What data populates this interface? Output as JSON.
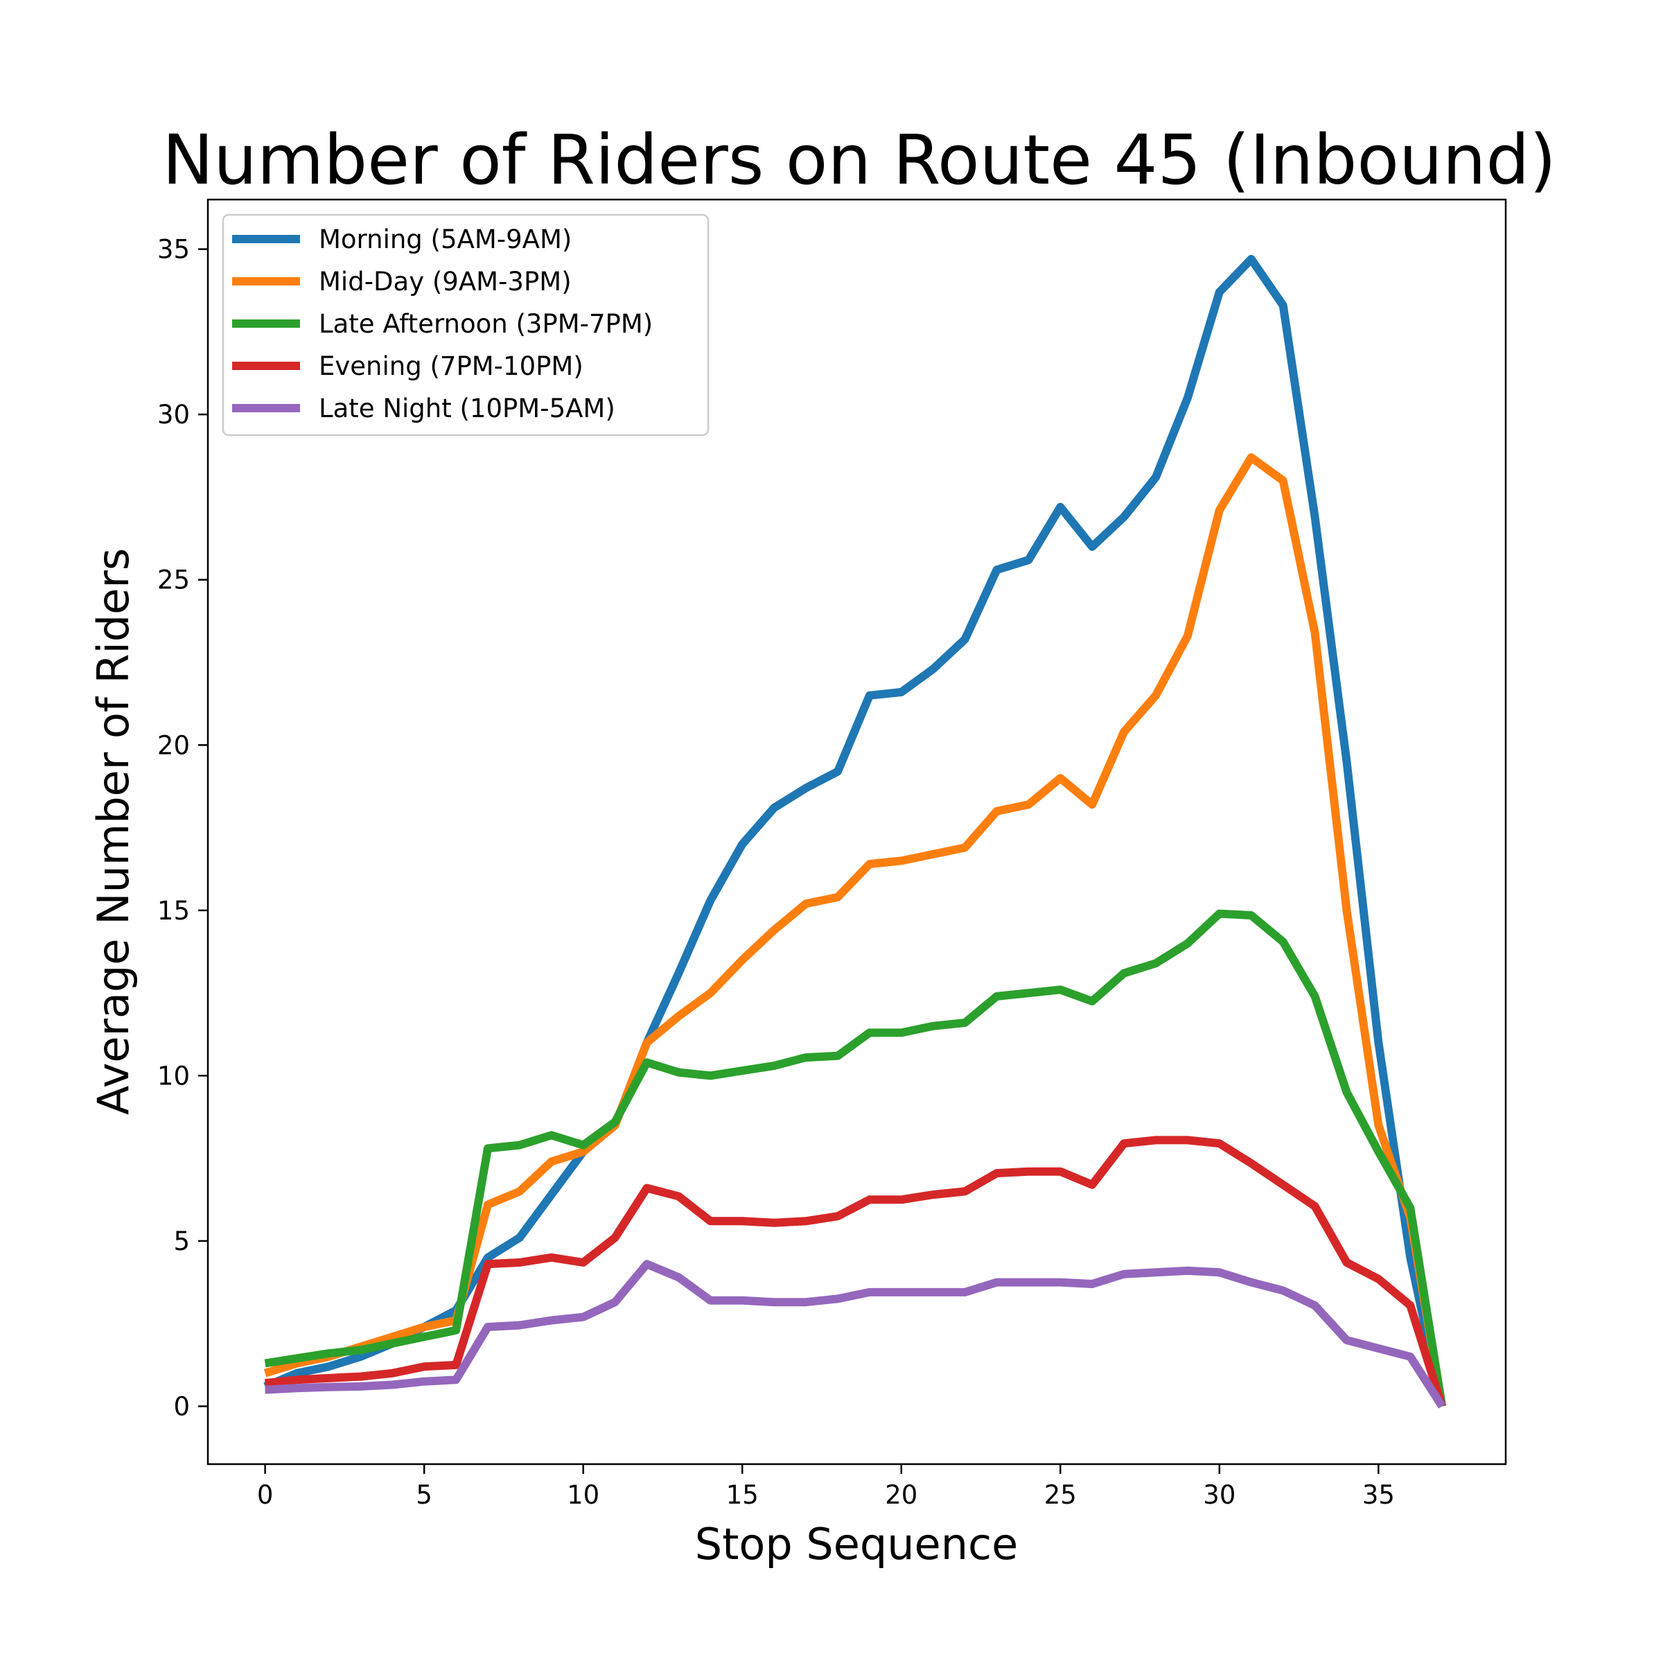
{
  "chart_data": {
    "type": "line",
    "title": "Number of Riders on Route 45 (Inbound)",
    "xlabel": "Stop Sequence",
    "ylabel": "Average Number of Riders",
    "xlim": [
      -1.8,
      39.0
    ],
    "ylim": [
      -1.75,
      36.5
    ],
    "xticks": [
      0,
      5,
      10,
      15,
      20,
      25,
      30,
      35
    ],
    "yticks": [
      0,
      5,
      10,
      15,
      20,
      25,
      30,
      35
    ],
    "grid": false,
    "legend_position": "top-left",
    "x": [
      0,
      1,
      2,
      3,
      4,
      5,
      6,
      7,
      8,
      9,
      10,
      11,
      12,
      13,
      14,
      15,
      16,
      17,
      18,
      19,
      20,
      21,
      22,
      23,
      24,
      25,
      26,
      27,
      28,
      29,
      30,
      31,
      32,
      33,
      34,
      35,
      36,
      37
    ],
    "series": [
      {
        "name": "Morning (5AM-9AM)",
        "color": "#1f77b4",
        "values": [
          0.6,
          1.0,
          1.2,
          1.5,
          1.9,
          2.4,
          2.9,
          4.5,
          5.1,
          6.4,
          7.7,
          8.5,
          11.0,
          13.1,
          15.3,
          17.0,
          18.1,
          18.7,
          19.2,
          21.5,
          21.6,
          22.3,
          23.2,
          25.3,
          25.6,
          27.2,
          26.0,
          26.9,
          28.1,
          30.5,
          33.7,
          34.7,
          33.3,
          26.9,
          19.5,
          11.0,
          4.5,
          0.0
        ]
      },
      {
        "name": "Mid-Day (9AM-3PM)",
        "color": "#ff7f0e",
        "values": [
          1.0,
          1.3,
          1.5,
          1.8,
          2.1,
          2.4,
          2.6,
          6.1,
          6.5,
          7.4,
          7.7,
          8.5,
          11.0,
          11.8,
          12.5,
          13.5,
          14.4,
          15.2,
          15.4,
          16.4,
          16.5,
          16.7,
          16.9,
          18.0,
          18.2,
          19.0,
          18.2,
          20.4,
          21.5,
          23.3,
          27.1,
          28.7,
          28.0,
          23.4,
          15.0,
          8.5,
          5.7,
          0.0
        ]
      },
      {
        "name": "Late Afternoon (3PM-7PM)",
        "color": "#2ca02c",
        "values": [
          1.3,
          1.45,
          1.6,
          1.7,
          1.9,
          2.1,
          2.3,
          7.8,
          7.9,
          8.2,
          7.9,
          8.6,
          10.4,
          10.1,
          10.0,
          10.15,
          10.3,
          10.55,
          10.6,
          11.3,
          11.3,
          11.5,
          11.6,
          12.4,
          12.5,
          12.6,
          12.25,
          13.1,
          13.4,
          14.0,
          14.9,
          14.85,
          14.05,
          12.4,
          9.5,
          7.7,
          6.0,
          0.0
        ]
      },
      {
        "name": "Evening (7PM-10PM)",
        "color": "#d62728",
        "values": [
          0.7,
          0.8,
          0.85,
          0.9,
          1.0,
          1.2,
          1.25,
          4.3,
          4.35,
          4.5,
          4.35,
          5.1,
          6.6,
          6.35,
          5.6,
          5.6,
          5.55,
          5.6,
          5.75,
          6.25,
          6.25,
          6.4,
          6.5,
          7.05,
          7.1,
          7.1,
          6.7,
          7.95,
          8.05,
          8.05,
          7.95,
          7.35,
          6.7,
          6.05,
          4.35,
          3.85,
          3.05,
          0.0
        ]
      },
      {
        "name": "Late Night (10PM-5AM)",
        "color": "#9467bd",
        "values": [
          0.5,
          0.55,
          0.58,
          0.6,
          0.65,
          0.75,
          0.8,
          2.4,
          2.45,
          2.6,
          2.7,
          3.15,
          4.3,
          3.9,
          3.2,
          3.2,
          3.15,
          3.15,
          3.25,
          3.45,
          3.45,
          3.45,
          3.45,
          3.75,
          3.75,
          3.75,
          3.7,
          4.0,
          4.05,
          4.1,
          4.05,
          3.75,
          3.5,
          3.05,
          2.0,
          1.75,
          1.5,
          0.0
        ]
      }
    ]
  }
}
